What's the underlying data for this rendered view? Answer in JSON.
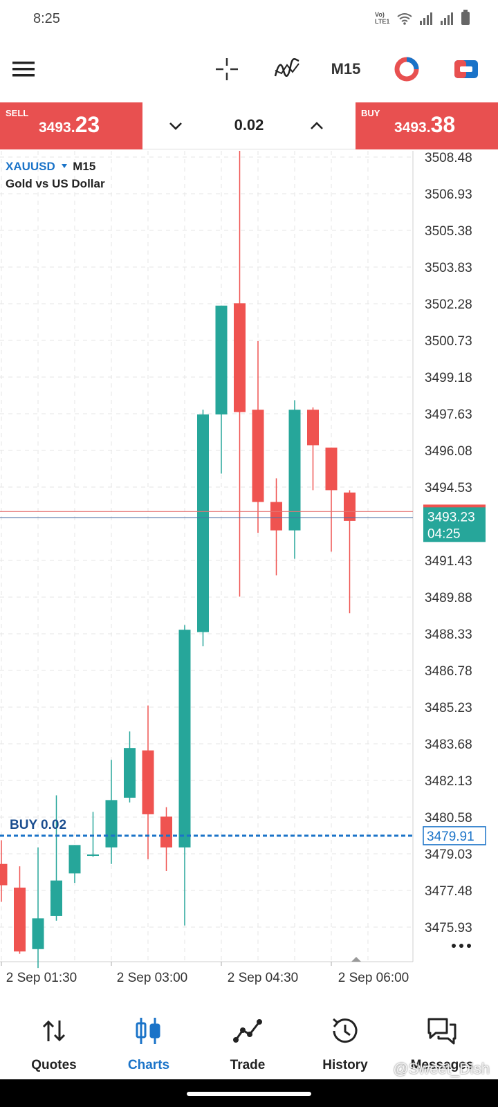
{
  "status": {
    "time": "8:25",
    "network_label": "Vo) LTE1"
  },
  "toolbar": {
    "timeframe": "M15"
  },
  "trade": {
    "sell_label": "SELL",
    "sell_price_small": "3493.",
    "sell_price_big": "23",
    "buy_label": "BUY",
    "buy_price_small": "3493.",
    "buy_price_big": "38",
    "lot": "0.02"
  },
  "chart": {
    "symbol": "XAUUSD",
    "timeframe": "M15",
    "description": "Gold vs US Dollar",
    "price_labels": [
      "3508.48",
      "3506.93",
      "3505.38",
      "3503.83",
      "3502.28",
      "3500.73",
      "3499.18",
      "3497.63",
      "3496.08",
      "3494.53",
      "3491.43",
      "3489.88",
      "3488.33",
      "3486.78",
      "3485.23",
      "3483.68",
      "3482.13",
      "3480.58",
      "3479.03",
      "3477.48",
      "3475.93"
    ],
    "current_price": "3493.23",
    "countdown": "04:25",
    "order_label": "BUY 0.02",
    "order_price": "3479.91",
    "time_labels": [
      "2 Sep 01:30",
      "2 Sep 03:00",
      "2 Sep 04:30",
      "2 Sep 06:00"
    ],
    "colors": {
      "bull": "#26a69a",
      "bear": "#ef5350",
      "accent": "#1a73c8"
    }
  },
  "chart_data": {
    "type": "candlestick",
    "symbol": "XAUUSD",
    "timeframe": "M15",
    "ylim": [
      3475.0,
      3509.0
    ],
    "candles": [
      {
        "open": 3478.6,
        "high": 3479.6,
        "low": 3477.0,
        "close": 3477.7
      },
      {
        "open": 3477.6,
        "high": 3478.5,
        "low": 3474.8,
        "close": 3474.9
      },
      {
        "open": 3475.0,
        "high": 3479.3,
        "low": 3474.2,
        "close": 3476.3
      },
      {
        "open": 3476.4,
        "high": 3481.5,
        "low": 3476.2,
        "close": 3477.9
      },
      {
        "open": 3478.2,
        "high": 3479.4,
        "low": 3477.8,
        "close": 3479.4
      },
      {
        "open": 3479.0,
        "high": 3480.8,
        "low": 3478.9,
        "close": 3479.0
      },
      {
        "open": 3479.3,
        "high": 3483.0,
        "low": 3478.6,
        "close": 3481.3
      },
      {
        "open": 3481.4,
        "high": 3484.2,
        "low": 3481.2,
        "close": 3483.5
      },
      {
        "open": 3483.4,
        "high": 3485.3,
        "low": 3478.8,
        "close": 3480.7
      },
      {
        "open": 3480.6,
        "high": 3481.0,
        "low": 3478.3,
        "close": 3479.3
      },
      {
        "open": 3479.3,
        "high": 3488.7,
        "low": 3476.0,
        "close": 3488.5
      },
      {
        "open": 3488.4,
        "high": 3497.8,
        "low": 3487.8,
        "close": 3497.6
      },
      {
        "open": 3497.6,
        "high": 3502.2,
        "low": 3495.1,
        "close": 3502.2
      },
      {
        "open": 3502.3,
        "high": 3508.9,
        "low": 3489.9,
        "close": 3497.7
      },
      {
        "open": 3497.8,
        "high": 3500.7,
        "low": 3492.6,
        "close": 3493.9
      },
      {
        "open": 3493.9,
        "high": 3494.9,
        "low": 3490.8,
        "close": 3492.7
      },
      {
        "open": 3492.7,
        "high": 3498.2,
        "low": 3491.5,
        "close": 3497.8
      },
      {
        "open": 3497.8,
        "high": 3497.9,
        "low": 3494.4,
        "close": 3496.3
      },
      {
        "open": 3496.2,
        "high": 3496.2,
        "low": 3491.8,
        "close": 3494.4
      },
      {
        "open": 3494.3,
        "high": 3494.4,
        "low": 3489.2,
        "close": 3493.1
      }
    ]
  },
  "nav": {
    "items": [
      {
        "label": "Quotes"
      },
      {
        "label": "Charts"
      },
      {
        "label": "Trade"
      },
      {
        "label": "History"
      },
      {
        "label": "Messages"
      }
    ]
  },
  "watermark": "@Sweet_Dish"
}
